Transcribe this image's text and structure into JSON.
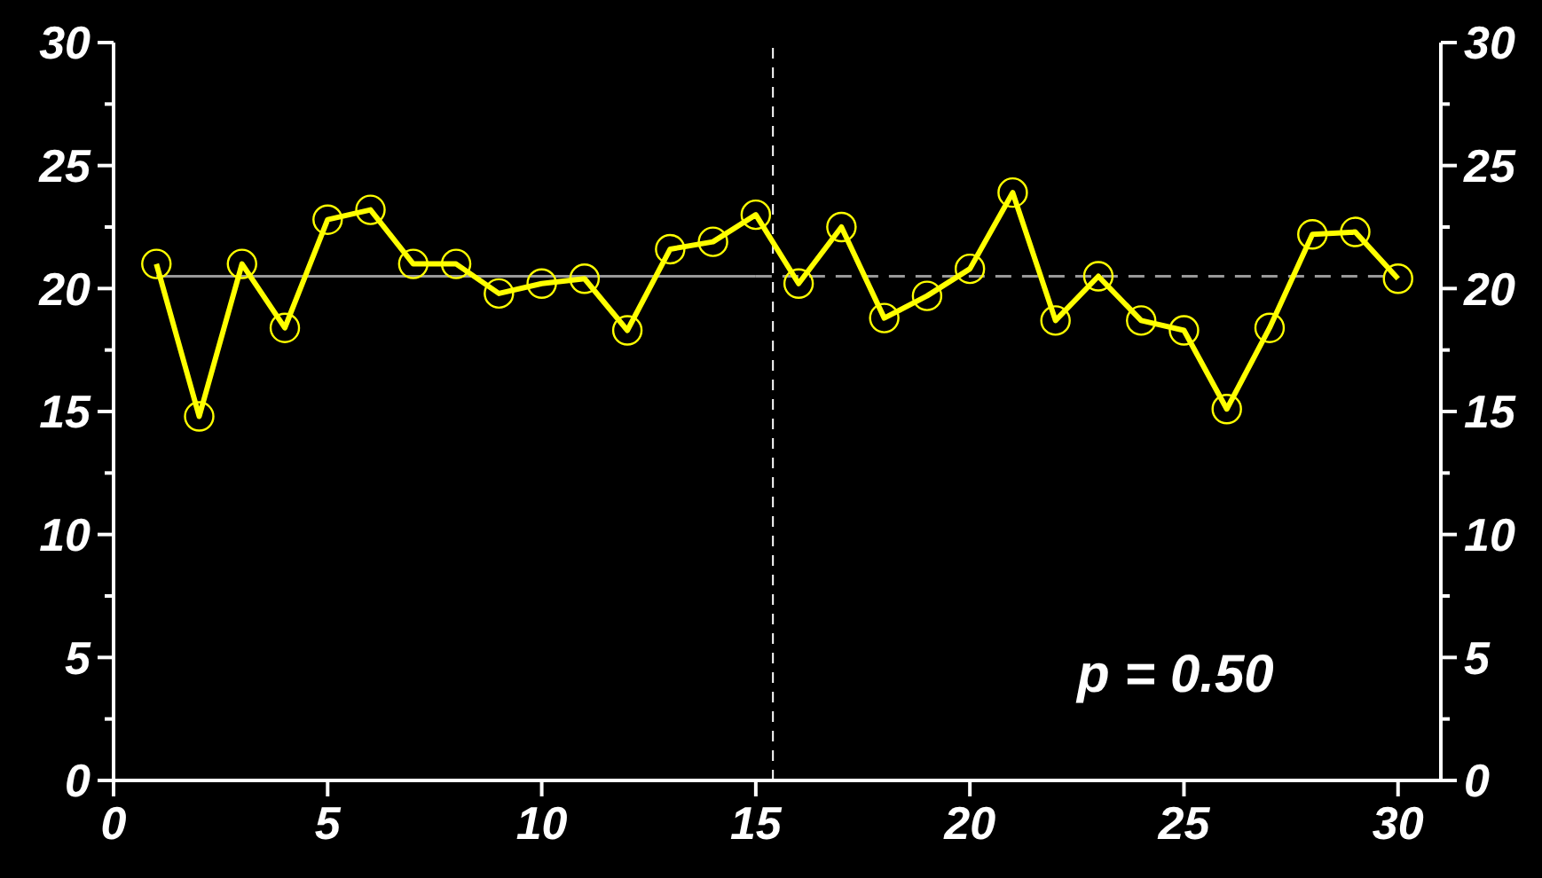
{
  "chart_data": {
    "type": "line",
    "x": [
      1,
      2,
      3,
      4,
      5,
      6,
      7,
      8,
      9,
      10,
      11,
      12,
      13,
      14,
      15,
      16,
      17,
      18,
      19,
      20,
      21,
      22,
      23,
      24,
      25,
      26,
      27,
      28,
      29,
      30
    ],
    "series": [
      {
        "color": "#ffff00",
        "marker": "circle",
        "values": [
          21.0,
          14.8,
          21.0,
          18.4,
          22.8,
          23.2,
          21.0,
          21.0,
          19.8,
          20.2,
          20.4,
          18.3,
          21.6,
          21.9,
          23.0,
          20.2,
          22.5,
          18.8,
          19.7,
          20.8,
          23.9,
          18.7,
          20.5,
          18.7,
          18.3,
          15.1,
          18.4,
          22.2,
          22.3,
          20.4
        ]
      },
      {
        "color": "#999999",
        "marker": "none",
        "line_style": "solid",
        "x": [
          1,
          15
        ],
        "values": [
          20.5,
          20.5
        ]
      },
      {
        "color": "#999999",
        "marker": "none",
        "line_style": "dashed",
        "x": [
          15,
          30
        ],
        "values": [
          20.5,
          20.5
        ]
      }
    ],
    "xlim": [
      0,
      31
    ],
    "xticks": [
      0,
      5,
      10,
      15,
      20,
      25,
      30
    ],
    "ylim": [
      0,
      30
    ],
    "yticks": [
      0,
      {
        "value": 2.5,
        "label": null
      },
      5,
      {
        "value": 7.5,
        "label": null
      },
      10,
      {
        "value": 12.5,
        "label": null
      },
      15,
      {
        "value": 17.5,
        "label": null
      },
      20,
      {
        "value": 22.5,
        "label": null
      },
      25,
      {
        "value": 27.5,
        "label": null
      },
      30
    ],
    "y2lim": [
      0,
      30
    ],
    "y2ticks": [
      0,
      {
        "value": 2.5,
        "label": null
      },
      5,
      {
        "value": 7.5,
        "label": null
      },
      10,
      {
        "value": 12.5,
        "label": null
      },
      15,
      {
        "value": 17.5,
        "label": null
      },
      20,
      {
        "value": 22.5,
        "label": null
      },
      25,
      {
        "value": 27.5,
        "label": null
      },
      30
    ],
    "ref_lines": [
      {
        "axis": "x",
        "value": 15.4,
        "color": "#ffffff",
        "line_style": "dashed"
      }
    ],
    "annotations": [
      "p = 0.50"
    ],
    "grid": false
  }
}
